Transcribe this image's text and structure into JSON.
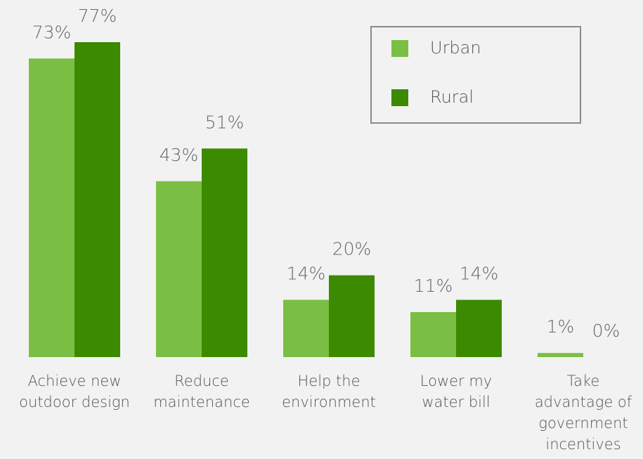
{
  "chart_data": {
    "type": "bar",
    "categories": [
      "Achieve new\noutdoor design",
      "Reduce\nmaintenance",
      "Help the\nenvironment",
      "Lower my\nwater bill",
      "Take\nadvantage of\ngovernment\nincentives"
    ],
    "series": [
      {
        "name": "Urban",
        "color": "#7abf44",
        "values": [
          73,
          43,
          14,
          11,
          1
        ],
        "value_labels": [
          "73%",
          "43%",
          "14%",
          "11%",
          "1%"
        ]
      },
      {
        "name": "Rural",
        "color": "#3b8a00",
        "values": [
          77,
          51,
          20,
          14,
          0
        ],
        "value_labels": [
          "77%",
          "51%",
          "20%",
          "14%",
          "0%"
        ]
      }
    ],
    "legend": "top-right"
  }
}
